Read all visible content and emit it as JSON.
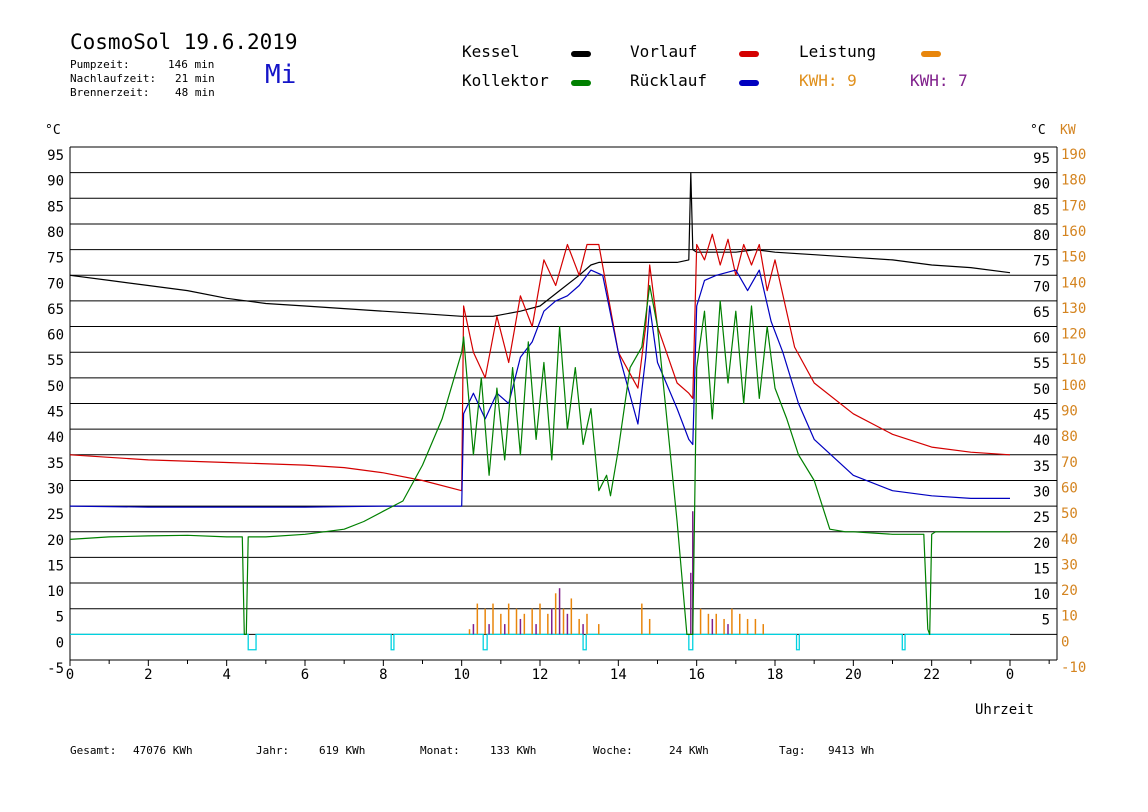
{
  "header": {
    "title": "CosmoSol 19.6.2019",
    "day": "Mi",
    "stats": [
      {
        "label": "Pumpzeit:",
        "value": "146 min"
      },
      {
        "label": "Nachlaufzeit:",
        "value": "21 min"
      },
      {
        "label": "Brennerzeit:",
        "value": "48 min"
      }
    ]
  },
  "legend": {
    "kessel": "Kessel",
    "kollektor": "Kollektor",
    "vorlauf": "Vorlauf",
    "ruecklauf": "Rücklauf",
    "leistung": "Leistung",
    "kwh1": "KWH: 9",
    "kwh2": "KWH: 7"
  },
  "colors": {
    "kessel": "#000000",
    "kollektor": "#008000",
    "vorlauf": "#d40000",
    "ruecklauf": "#0000c0",
    "leistung": "#e8860c",
    "kwh2": "#80208c",
    "pump": "#00d2e0",
    "kw_axis": "#d48420"
  },
  "footer": {
    "gesamt_label": "Gesamt:",
    "gesamt_value": "47076 KWh",
    "jahr_label": "Jahr:",
    "jahr_value": "619 KWh",
    "monat_label": "Monat:",
    "monat_value": "133 KWh",
    "woche_label": "Woche:",
    "woche_value": "24 KWh",
    "tag_label": "Tag:",
    "tag_value": "9413 Wh"
  },
  "chart_data": {
    "type": "line",
    "xlabel": "Uhrzeit",
    "ylabel_left": "°C",
    "ylabel_right_temp": "°C",
    "ylabel_right_power": "KW",
    "xlim": [
      0,
      24
    ],
    "ylim": [
      -5,
      95
    ],
    "ylim_power": [
      -10,
      190
    ],
    "x_ticks": [
      "0",
      "2",
      "4",
      "6",
      "8",
      "10",
      "12",
      "14",
      "16",
      "18",
      "20",
      "22",
      "0"
    ],
    "y_ticks": [
      -5,
      0,
      5,
      10,
      15,
      20,
      25,
      30,
      35,
      40,
      45,
      50,
      55,
      60,
      65,
      70,
      75,
      80,
      85,
      90,
      95
    ],
    "right_temp_ticks": [
      5,
      10,
      15,
      20,
      25,
      30,
      35,
      40,
      45,
      50,
      55,
      60,
      65,
      70,
      75,
      80,
      85,
      90,
      95
    ],
    "power_ticks": [
      -10,
      0,
      10,
      20,
      30,
      40,
      50,
      60,
      70,
      80,
      90,
      100,
      110,
      120,
      130,
      140,
      150,
      160,
      170,
      180,
      190
    ],
    "grid": true,
    "series": [
      {
        "name": "Kessel",
        "x": [
          0,
          1,
          2,
          3,
          4,
          5,
          6,
          7,
          8,
          9,
          10,
          10.8,
          11.5,
          12,
          12.5,
          13,
          13.3,
          13.5,
          14,
          14.5,
          15,
          15.5,
          15.8,
          15.85,
          15.9,
          16,
          16.5,
          17,
          17.5,
          18,
          19,
          20,
          21,
          22,
          23,
          24
        ],
        "y": [
          70,
          69,
          68,
          67,
          65.5,
          64.5,
          64,
          63.5,
          63,
          62.5,
          62,
          62,
          63,
          64,
          67,
          70,
          72,
          72.5,
          72.5,
          72.5,
          72.5,
          72.5,
          73,
          90,
          75,
          74.5,
          74.5,
          74.5,
          75,
          74.5,
          74,
          73.5,
          73,
          72,
          71.5,
          70.5
        ]
      },
      {
        "name": "Vorlauf",
        "x": [
          0,
          2,
          4,
          6,
          7,
          8,
          9,
          10,
          10.05,
          10.3,
          10.6,
          10.9,
          11.2,
          11.5,
          11.8,
          12.1,
          12.4,
          12.7,
          13,
          13.2,
          13.5,
          14,
          14.5,
          14.7,
          14.8,
          15,
          15.5,
          15.8,
          15.9,
          16,
          16.2,
          16.4,
          16.6,
          16.8,
          17,
          17.2,
          17.4,
          17.6,
          17.8,
          18,
          18.5,
          19,
          20,
          21,
          22,
          23,
          24
        ],
        "y": [
          35,
          34,
          33.5,
          33,
          32.5,
          31.5,
          30,
          28,
          64,
          55,
          50,
          62,
          53,
          66,
          60,
          73,
          68,
          76,
          70,
          76,
          76,
          55,
          48,
          60,
          72,
          60,
          49,
          47,
          46,
          76,
          73,
          78,
          72,
          77,
          70,
          76,
          72,
          76,
          67,
          73,
          56,
          49,
          43,
          39,
          36.5,
          35.5,
          35
        ]
      },
      {
        "name": "Rücklauf",
        "x": [
          0,
          2,
          4,
          6,
          8,
          9,
          10,
          10.05,
          10.3,
          10.6,
          10.9,
          11.2,
          11.5,
          11.8,
          12.1,
          12.4,
          12.7,
          13,
          13.3,
          13.6,
          14,
          14.5,
          14.7,
          14.8,
          15,
          15.5,
          15.8,
          15.9,
          16,
          16.2,
          16.5,
          17,
          17.3,
          17.6,
          17.9,
          18.2,
          18.6,
          19,
          20,
          21,
          22,
          23,
          24
        ],
        "y": [
          25,
          24.8,
          24.8,
          24.8,
          25,
          25,
          25,
          43,
          47,
          42,
          47,
          45,
          54,
          57,
          63,
          65,
          66,
          68,
          71,
          70,
          55,
          41,
          54,
          64,
          53,
          44,
          38,
          37,
          64,
          69,
          70,
          71,
          67,
          71,
          61,
          55,
          45,
          38,
          31,
          28,
          27,
          26.5,
          26.5
        ]
      },
      {
        "name": "Kollektor",
        "x": [
          0,
          1,
          2,
          3,
          4,
          4.4,
          4.45,
          4.5,
          4.55,
          5,
          6,
          7,
          7.5,
          8,
          8.5,
          9,
          9.5,
          10,
          10.05,
          10.3,
          10.5,
          10.7,
          10.9,
          11.1,
          11.3,
          11.5,
          11.7,
          11.9,
          12.1,
          12.3,
          12.5,
          12.7,
          12.9,
          13.1,
          13.3,
          13.5,
          13.7,
          13.8,
          14,
          14.3,
          14.6,
          14.8,
          15,
          15.2,
          15.5,
          15.75,
          15.85,
          15.9,
          16,
          16.2,
          16.4,
          16.6,
          16.8,
          17,
          17.2,
          17.4,
          17.6,
          17.8,
          18,
          18.3,
          18.6,
          19,
          19.4,
          19.8,
          20,
          21,
          21.8,
          21.9,
          21.95,
          22,
          22.1,
          23,
          24
        ],
        "y": [
          18.5,
          19,
          19.2,
          19.3,
          19,
          19,
          0,
          0,
          19,
          19,
          19.5,
          20.5,
          22,
          24,
          26,
          33,
          42,
          55,
          58,
          35,
          50,
          31,
          48,
          34,
          52,
          35,
          57,
          38,
          53,
          34,
          60,
          40,
          52,
          37,
          44,
          28,
          31,
          27,
          36,
          52,
          56,
          68,
          60,
          45,
          22,
          0,
          0,
          0,
          52,
          63,
          42,
          65,
          49,
          63,
          45,
          64,
          46,
          60,
          48,
          42,
          35,
          30,
          20.5,
          20,
          20,
          19.5,
          19.5,
          1,
          0,
          19.5,
          20,
          20,
          20
        ]
      }
    ],
    "power_spikes": {
      "name": "Leistung",
      "x": [
        10.2,
        10.4,
        10.6,
        10.8,
        11.0,
        11.2,
        11.4,
        11.6,
        11.8,
        12.0,
        12.2,
        12.4,
        12.6,
        12.8,
        13.0,
        13.2,
        13.5,
        14.6,
        14.8,
        15.9,
        16.1,
        16.3,
        16.5,
        16.7,
        16.9,
        17.1,
        17.3,
        17.5,
        17.7
      ],
      "y": [
        2,
        12,
        10,
        12,
        8,
        12,
        10,
        8,
        10,
        12,
        8,
        16,
        10,
        14,
        6,
        8,
        4,
        12,
        6,
        12,
        10,
        8,
        8,
        6,
        10,
        8,
        6,
        6,
        4
      ]
    },
    "kwh2_spikes": {
      "name": "KWH: 7",
      "x": [
        10.3,
        10.7,
        11.1,
        11.5,
        11.9,
        12.3,
        12.5,
        12.7,
        13.1,
        15.85,
        15.9,
        16.4,
        16.8
      ],
      "y": [
        4,
        4,
        4,
        6,
        4,
        10,
        18,
        8,
        4,
        24,
        48,
        6,
        4
      ]
    },
    "pump_pulses": [
      [
        4.55,
        4.75
      ],
      [
        8.2,
        8.27
      ],
      [
        10.55,
        10.65
      ],
      [
        13.1,
        13.18
      ],
      [
        15.8,
        15.9
      ],
      [
        18.55,
        18.62
      ],
      [
        21.25,
        21.32
      ]
    ]
  }
}
